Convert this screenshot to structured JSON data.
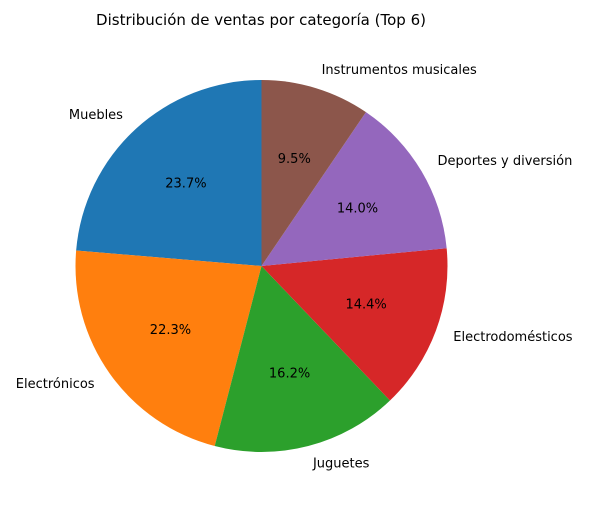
{
  "chart_data": {
    "type": "pie",
    "title": "Distribución de ventas por categoría (Top 6)",
    "slices": [
      {
        "label": "Muebles",
        "value": 23.7,
        "pct_label": "23.7%",
        "color": "#1f77b4"
      },
      {
        "label": "Electrónicos",
        "value": 22.3,
        "pct_label": "22.3%",
        "color": "#ff7f0e"
      },
      {
        "label": "Juguetes",
        "value": 16.2,
        "pct_label": "16.2%",
        "color": "#2ca02c"
      },
      {
        "label": "Electrodomésticos",
        "value": 14.4,
        "pct_label": "14.4%",
        "color": "#d62728"
      },
      {
        "label": "Deportes y diversión",
        "value": 14.0,
        "pct_label": "14.0%",
        "color": "#9467bd"
      },
      {
        "label": "Instrumentos musicales",
        "value": 9.5,
        "pct_label": "9.5%",
        "color": "#8c564b"
      }
    ],
    "start_angle": "90 degrees (top)",
    "direction": "counterclockwise",
    "legend": "none"
  }
}
